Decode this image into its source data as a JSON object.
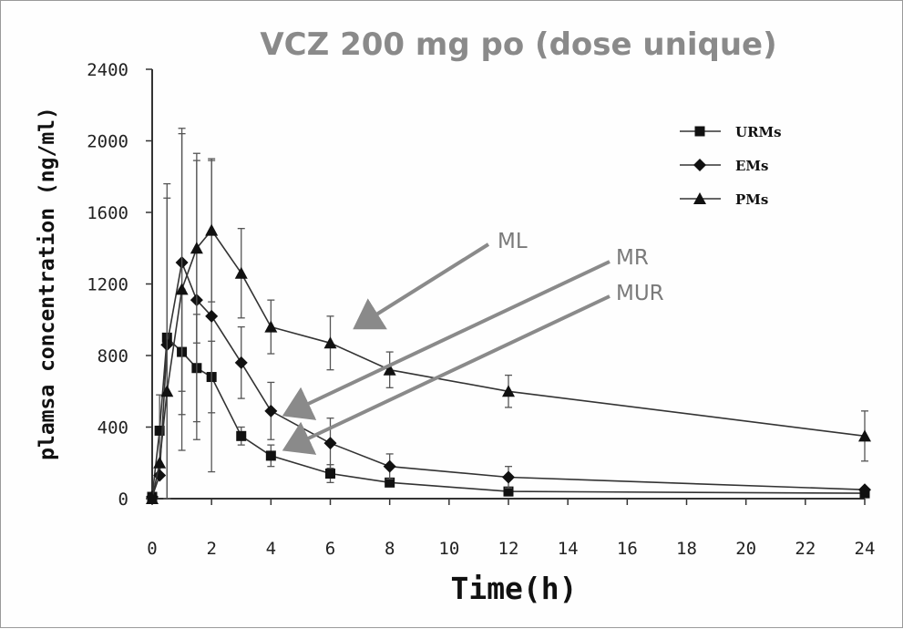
{
  "chart_data": {
    "type": "line",
    "title": "VCZ 200 mg po (dose unique)",
    "xlabel": "Time(h)",
    "ylabel": "plamsa concentration (ng/ml)",
    "xlim": [
      0,
      24
    ],
    "ylim": [
      0,
      2400
    ],
    "xticks": [
      "0",
      "2",
      "4",
      "6",
      "8",
      "10",
      "12",
      "14",
      "16",
      "18",
      "20",
      "22",
      "24"
    ],
    "yticks": [
      "0",
      "400",
      "800",
      "1200",
      "1600",
      "2000",
      "2400"
    ],
    "grid": false,
    "legend_position": "top-right",
    "series": [
      {
        "name": "URMs",
        "marker": "square",
        "points": [
          {
            "x": 0,
            "y": 10
          },
          {
            "x": 0.25,
            "y": 380
          },
          {
            "x": 0.5,
            "y": 900
          },
          {
            "x": 1,
            "y": 820
          },
          {
            "x": 1.5,
            "y": 730
          },
          {
            "x": 2,
            "y": 680
          },
          {
            "x": 3,
            "y": 350
          },
          {
            "x": 4,
            "y": 240
          },
          {
            "x": 6,
            "y": 140
          },
          {
            "x": 8,
            "y": 90
          },
          {
            "x": 12,
            "y": 40
          },
          {
            "x": 24,
            "y": 30
          }
        ],
        "errors": [
          0,
          200,
          0,
          350,
          300,
          200,
          50,
          60,
          50,
          0,
          0,
          0
        ]
      },
      {
        "name": "EMs",
        "marker": "diamond",
        "points": [
          {
            "x": 0,
            "y": 10
          },
          {
            "x": 0.25,
            "y": 130
          },
          {
            "x": 0.5,
            "y": 860
          },
          {
            "x": 1,
            "y": 1320
          },
          {
            "x": 1.5,
            "y": 1110
          },
          {
            "x": 2,
            "y": 1020
          },
          {
            "x": 3,
            "y": 760
          },
          {
            "x": 4,
            "y": 490
          },
          {
            "x": 6,
            "y": 310
          },
          {
            "x": 8,
            "y": 180
          },
          {
            "x": 12,
            "y": 120
          },
          {
            "x": 24,
            "y": 50
          }
        ],
        "errors": [
          0,
          0,
          900,
          720,
          780,
          870,
          200,
          160,
          140,
          70,
          60,
          0
        ]
      },
      {
        "name": "PMs",
        "marker": "triangle",
        "points": [
          {
            "x": 0,
            "y": 0
          },
          {
            "x": 0.25,
            "y": 200
          },
          {
            "x": 0.5,
            "y": 600
          },
          {
            "x": 1,
            "y": 1170
          },
          {
            "x": 1.5,
            "y": 1400
          },
          {
            "x": 2,
            "y": 1500
          },
          {
            "x": 3,
            "y": 1260
          },
          {
            "x": 4,
            "y": 960
          },
          {
            "x": 6,
            "y": 870
          },
          {
            "x": 8,
            "y": 720
          },
          {
            "x": 12,
            "y": 600
          },
          {
            "x": 24,
            "y": 350
          }
        ],
        "errors": [
          0,
          0,
          1080,
          900,
          530,
          400,
          250,
          150,
          150,
          100,
          90,
          140
        ]
      }
    ],
    "annotations": [
      {
        "text": "ML",
        "target_series": "PMs"
      },
      {
        "text": "MR",
        "target_series": "EMs"
      },
      {
        "text": "MUR",
        "target_series": "URMs"
      }
    ],
    "colors": {
      "line": "#333333",
      "annotation": "#8a8a8a",
      "title": "#8a8a8a"
    }
  }
}
